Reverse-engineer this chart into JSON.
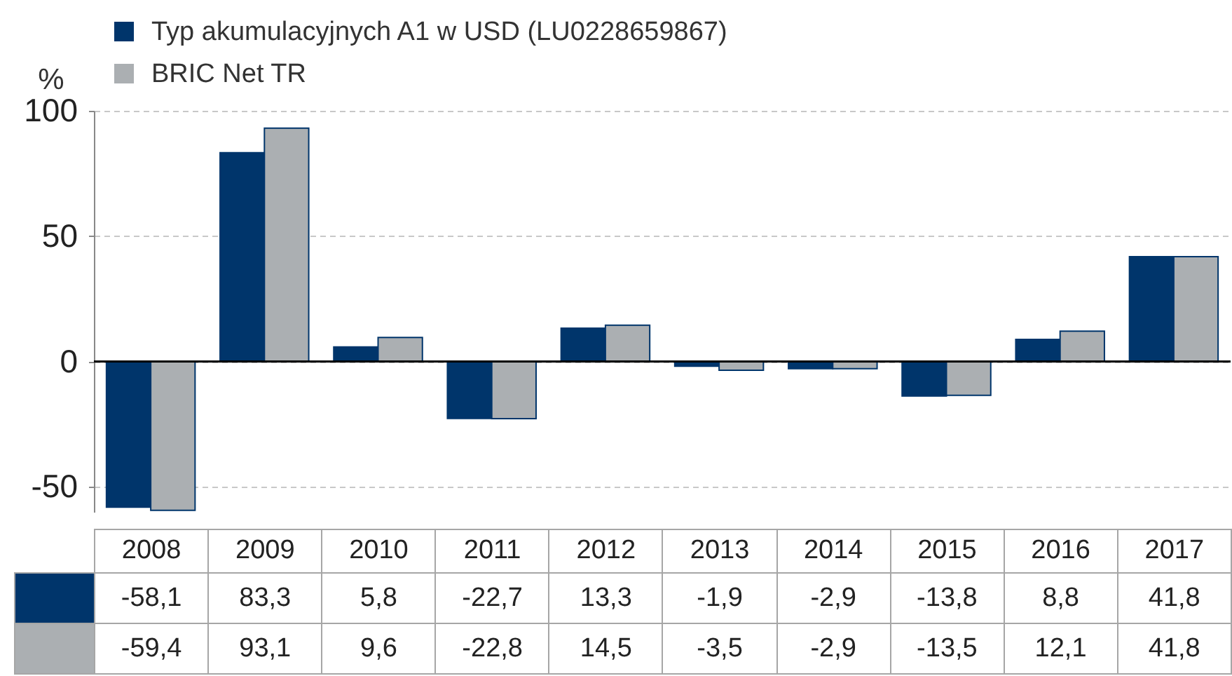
{
  "chart_data": {
    "type": "bar",
    "categories": [
      "2008",
      "2009",
      "2010",
      "2011",
      "2012",
      "2013",
      "2014",
      "2015",
      "2016",
      "2017"
    ],
    "series": [
      {
        "name": "Typ akumulacyjnych A1 w USD (LU0228659867)",
        "color": "#00356b",
        "values": [
          -58.1,
          83.3,
          5.8,
          -22.7,
          13.3,
          -1.9,
          -2.9,
          -13.8,
          8.8,
          41.8
        ],
        "value_labels": [
          "-58,1",
          "83,3",
          "5,8",
          "-22,7",
          "13,3",
          "-1,9",
          "-2,9",
          "-13,8",
          "8,8",
          "41,8"
        ]
      },
      {
        "name": "BRIC Net TR",
        "color": "#abafb2",
        "values": [
          -59.4,
          93.1,
          9.6,
          -22.8,
          14.5,
          -3.5,
          -2.9,
          -13.5,
          12.1,
          41.8
        ],
        "value_labels": [
          "-59,4",
          "93,1",
          "9,6",
          "-22,8",
          "14,5",
          "-3,5",
          "-2,9",
          "-13,5",
          "12,1",
          "41,8"
        ]
      }
    ],
    "ylabel": "%",
    "ylim": [
      -60,
      100
    ],
    "yticks": [
      -50,
      0,
      50,
      100
    ],
    "grid": "y",
    "legend": "top left",
    "ref_lines": [
      {
        "axis": "y",
        "value": 0,
        "color": "#000000"
      }
    ]
  }
}
